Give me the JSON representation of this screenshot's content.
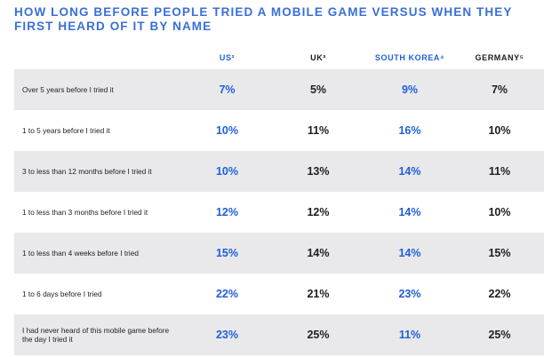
{
  "chart_data": {
    "type": "table",
    "title": "HOW LONG BEFORE PEOPLE TRIED A MOBILE GAME VERSUS WHEN THEY FIRST HEARD OF IT BY NAME",
    "columns": [
      {
        "label": "US²",
        "color": "#1f5fd9"
      },
      {
        "label": "UK³",
        "color": "#1c1e21"
      },
      {
        "label": "SOUTH KOREA⁴",
        "color": "#1f5fd9"
      },
      {
        "label": "GERMANY⁵",
        "color": "#1c1e21"
      }
    ],
    "rows": [
      {
        "label": "Over 5 years before I tried it",
        "values": [
          "7%",
          "5%",
          "9%",
          "7%"
        ]
      },
      {
        "label": "1 to 5 years before I tried it",
        "values": [
          "10%",
          "11%",
          "16%",
          "10%"
        ]
      },
      {
        "label": "3 to less than 12 months before I tried it",
        "values": [
          "10%",
          "13%",
          "14%",
          "11%"
        ]
      },
      {
        "label": "1 to less than 3 months before I tried it",
        "values": [
          "12%",
          "12%",
          "14%",
          "10%"
        ]
      },
      {
        "label": "1 to less than 4 weeks before I tried",
        "values": [
          "15%",
          "14%",
          "14%",
          "15%"
        ]
      },
      {
        "label": "1 to 6 days before I tried",
        "values": [
          "22%",
          "21%",
          "23%",
          "22%"
        ]
      },
      {
        "label": "I had never heard of this mobile game before the day I tried it",
        "values": [
          "23%",
          "25%",
          "11%",
          "25%"
        ]
      }
    ]
  },
  "colors": {
    "accent": "#1f5fd9",
    "title": "#3a6fd8",
    "dark": "#1c1e21",
    "shade": "#e9e9eb"
  }
}
